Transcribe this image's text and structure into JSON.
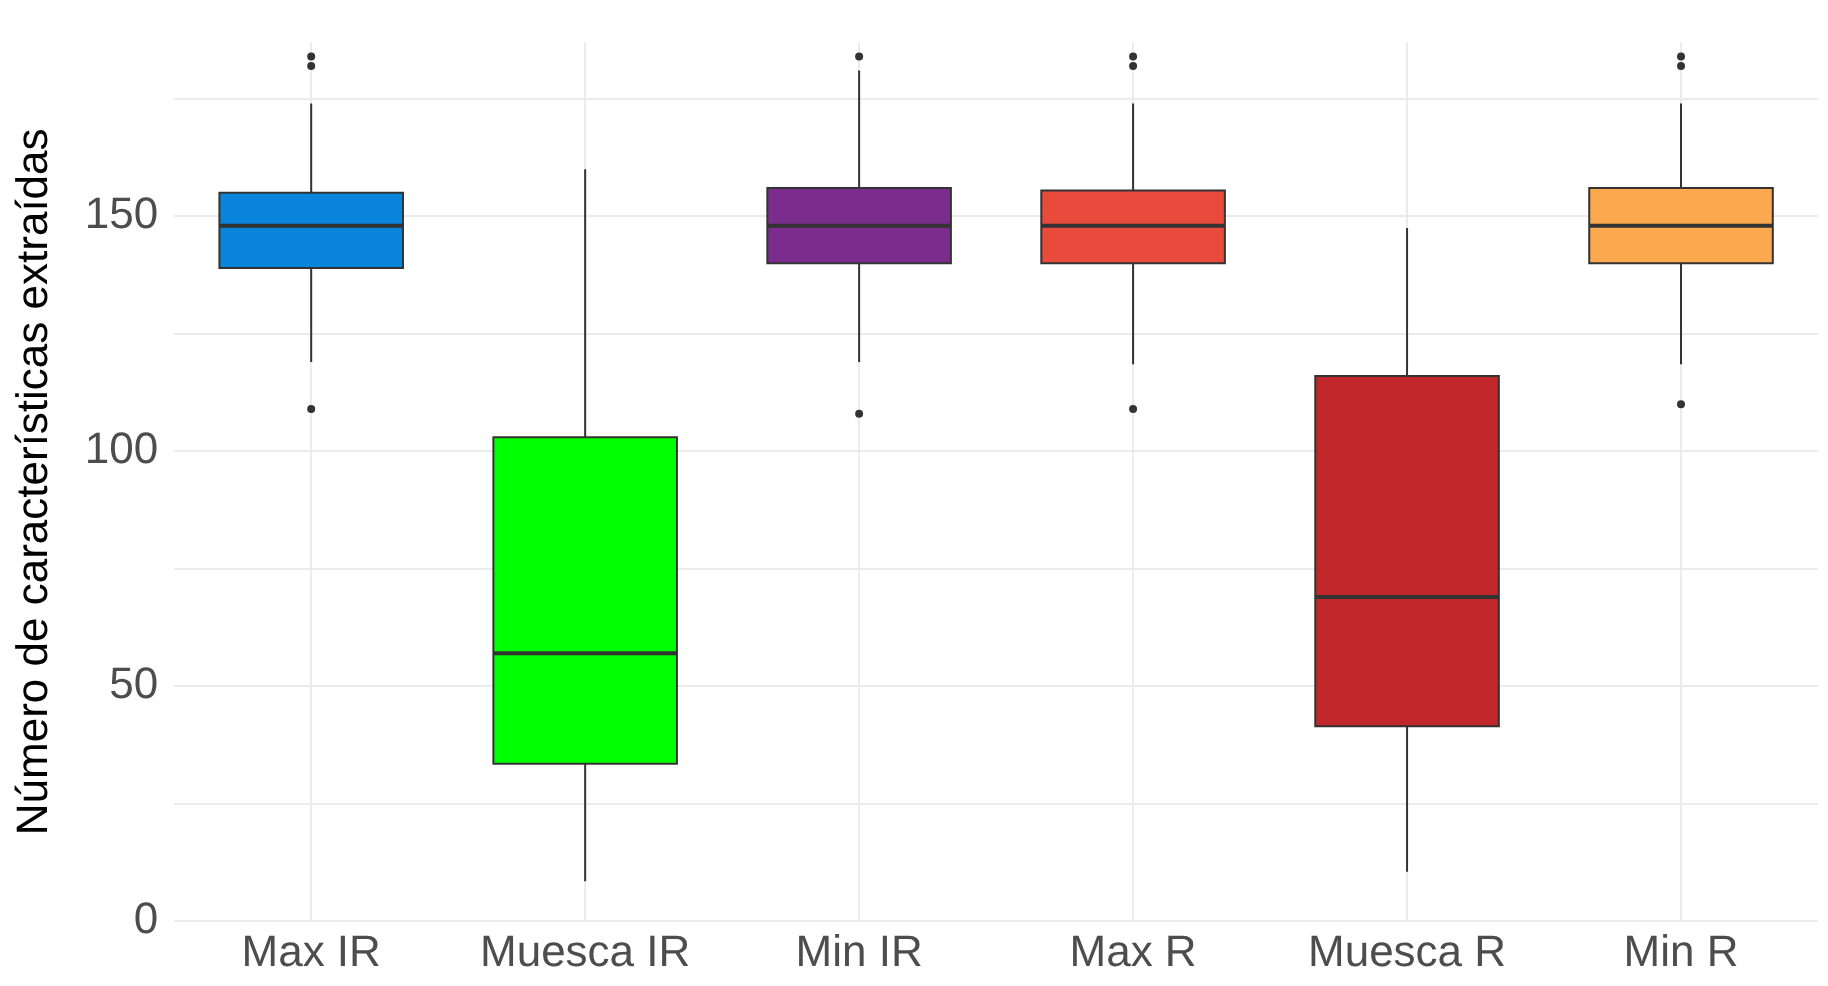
{
  "chart_data": {
    "type": "box",
    "ylabel": "Número de características extraídas",
    "categories": [
      "Max IR",
      "Muesca IR",
      "Min IR",
      "Max R",
      "Muesca R",
      "Min R"
    ],
    "colors": [
      "#0a85dc",
      "#00ff00",
      "#7b2d8e",
      "#e84a3c",
      "#c0262a",
      "#fba84f"
    ],
    "boxes": [
      {
        "low": 119,
        "q1": 139,
        "median": 148,
        "q3": 155,
        "high": 174,
        "outliers": [
          109,
          182,
          184
        ]
      },
      {
        "low": 8.5,
        "q1": 33.5,
        "median": 57,
        "q3": 103,
        "high": 160
      },
      {
        "low": 119,
        "q1": 140,
        "median": 148,
        "q3": 156,
        "high": 181,
        "outliers": [
          108,
          184
        ]
      },
      {
        "low": 118.5,
        "q1": 140,
        "median": 148,
        "q3": 155.5,
        "high": 174,
        "outliers": [
          109,
          182,
          184
        ]
      },
      {
        "low": 10.5,
        "q1": 41.5,
        "median": 69,
        "q3": 116,
        "high": 147.5
      },
      {
        "low": 118.5,
        "q1": 140,
        "median": 148,
        "q3": 156,
        "high": 174,
        "outliers": [
          110,
          182,
          184
        ]
      }
    ],
    "ylim": [
      0,
      187
    ],
    "yticks": [
      0,
      {
        "value": 25,
        "label": null
      },
      50,
      {
        "value": 75,
        "label": null
      },
      100,
      {
        "value": 125,
        "label": null
      },
      150,
      {
        "value": 175,
        "label": null
      }
    ],
    "grid": true,
    "legend": false
  }
}
